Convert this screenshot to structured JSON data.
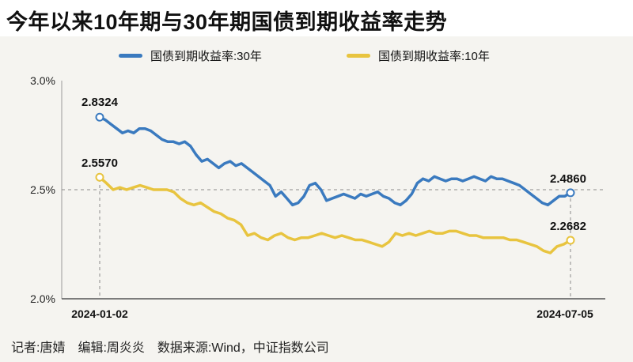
{
  "title": "今年以来10年期与30年期国债到期收益率走势",
  "footer": "记者:唐婧　编辑:周炎炎　数据来源:Wind，中证指数公司",
  "colors": {
    "series_30y": "#3a7abf",
    "series_10y": "#e8c43f"
  },
  "chart_data": {
    "type": "line",
    "ylim": [
      2.0,
      3.0
    ],
    "yticks": [
      "3.0%",
      "2.5%",
      "2.0%"
    ],
    "ytick_values": [
      3.0,
      2.5,
      2.0
    ],
    "x_labels": [
      "2024-01-02",
      "2024-07-05"
    ],
    "grid": "dashed line at 2.5%",
    "legend": "top",
    "series": [
      {
        "name": "国债到期收益率:30年",
        "color": "#3a7abf",
        "start_label": "2.8324",
        "end_label": "2.4860",
        "values": [
          2.8324,
          2.82,
          2.8,
          2.78,
          2.76,
          2.77,
          2.76,
          2.78,
          2.78,
          2.77,
          2.75,
          2.73,
          2.72,
          2.72,
          2.71,
          2.72,
          2.7,
          2.66,
          2.63,
          2.64,
          2.62,
          2.6,
          2.62,
          2.63,
          2.61,
          2.62,
          2.6,
          2.58,
          2.56,
          2.54,
          2.52,
          2.47,
          2.49,
          2.46,
          2.43,
          2.44,
          2.47,
          2.52,
          2.53,
          2.5,
          2.45,
          2.46,
          2.47,
          2.48,
          2.47,
          2.46,
          2.48,
          2.47,
          2.48,
          2.49,
          2.47,
          2.46,
          2.44,
          2.43,
          2.45,
          2.48,
          2.53,
          2.55,
          2.54,
          2.56,
          2.55,
          2.54,
          2.55,
          2.55,
          2.54,
          2.55,
          2.56,
          2.55,
          2.54,
          2.56,
          2.55,
          2.55,
          2.54,
          2.53,
          2.52,
          2.5,
          2.48,
          2.46,
          2.44,
          2.43,
          2.45,
          2.47,
          2.47,
          2.486
        ]
      },
      {
        "name": "国债到期收益率:10年",
        "color": "#e8c43f",
        "start_label": "2.5570",
        "end_label": "2.2682",
        "values": [
          2.557,
          2.53,
          2.5,
          2.51,
          2.5,
          2.51,
          2.52,
          2.51,
          2.5,
          2.5,
          2.5,
          2.49,
          2.46,
          2.44,
          2.43,
          2.44,
          2.42,
          2.4,
          2.39,
          2.37,
          2.36,
          2.34,
          2.29,
          2.3,
          2.28,
          2.27,
          2.29,
          2.3,
          2.28,
          2.27,
          2.28,
          2.28,
          2.29,
          2.3,
          2.29,
          2.28,
          2.29,
          2.28,
          2.27,
          2.27,
          2.26,
          2.25,
          2.24,
          2.26,
          2.3,
          2.29,
          2.3,
          2.29,
          2.3,
          2.31,
          2.3,
          2.3,
          2.31,
          2.31,
          2.3,
          2.29,
          2.29,
          2.28,
          2.28,
          2.28,
          2.28,
          2.27,
          2.27,
          2.26,
          2.25,
          2.24,
          2.22,
          2.21,
          2.24,
          2.25,
          2.2682
        ]
      }
    ]
  }
}
